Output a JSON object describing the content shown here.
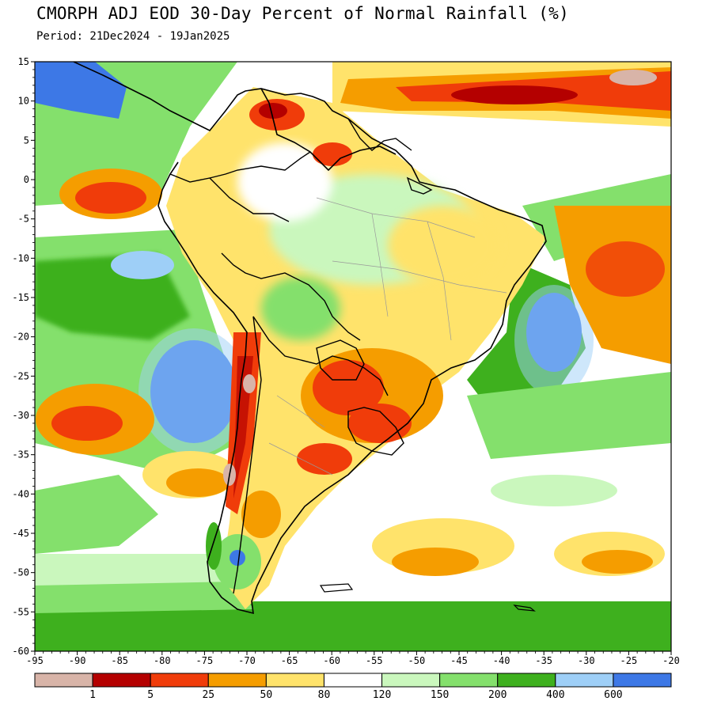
{
  "title": "CMORPH ADJ EOD 30-Day Percent of Normal Rainfall (%)",
  "period": "Period: 21Dec2024 - 19Jan2025",
  "map": {
    "lon_range": [
      -95,
      -20
    ],
    "lat_range": [
      -60,
      15
    ],
    "lon_ticks": [
      -95,
      -90,
      -85,
      -80,
      -75,
      -70,
      -65,
      -60,
      -55,
      -50,
      -45,
      -40,
      -35,
      -30,
      -25,
      -20
    ],
    "lat_ticks": [
      15,
      10,
      5,
      0,
      -5,
      -10,
      -15,
      -20,
      -25,
      -30,
      -35,
      -40,
      -45,
      -50,
      -55,
      -60
    ],
    "lon_tick_labels": [
      "-95",
      "-90",
      "-85",
      "-80",
      "-75",
      "-70",
      "-65",
      "-60",
      "-55",
      "-50",
      "-45",
      "-40",
      "-35",
      "-30",
      "-25",
      "-20"
    ],
    "lat_tick_labels": [
      "15",
      "10",
      "5",
      "0",
      "-5",
      "-10",
      "-15",
      "-20",
      "-25",
      "-30",
      "-35",
      "-40",
      "-45",
      "-50",
      "-55",
      "-60"
    ]
  },
  "colorbar": {
    "colors": [
      "#d8b4a8",
      "#b40000",
      "#f03c0a",
      "#f59d00",
      "#ffe36b",
      "#ffffff",
      "#caf7bd",
      "#84e06c",
      "#3eb01e",
      "#9ecff7",
      "#3d78e6"
    ],
    "labels": [
      "1",
      "5",
      "25",
      "50",
      "80",
      "120",
      "150",
      "200",
      "400",
      "600"
    ]
  },
  "regions": {
    "color_codes": {
      "deep_red": "#b40000",
      "red": "#f03c0a",
      "orange": "#f59d00",
      "yellow": "#ffe36b",
      "light_green": "#caf7bd",
      "green": "#84e06c",
      "dark_green": "#3eb01e",
      "light_blue": "#9ecff7",
      "blue": "#3d78e6",
      "pink": "#d8b4a8"
    }
  }
}
